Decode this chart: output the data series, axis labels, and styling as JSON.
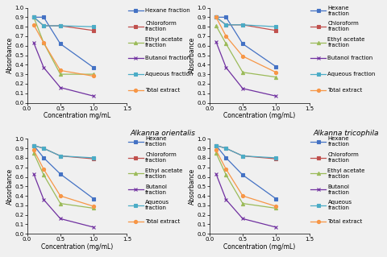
{
  "x": [
    0.1,
    0.25,
    0.5,
    1.0
  ],
  "panels": [
    {
      "title": "",
      "xlabel": "Concentration mg/mL",
      "legend_labels": [
        "Hexane fraction",
        "Chloroform\nfraction",
        "Ethyl acetate\nfraction",
        "Butanol fraction",
        "Aqueous fraction",
        "Total extract"
      ],
      "series": {
        "Hexane": [
          0.9,
          0.9,
          0.62,
          0.37
        ],
        "Chloroform": [
          0.9,
          0.81,
          0.81,
          0.76
        ],
        "EthylAcetate": [
          0.9,
          0.63,
          0.3,
          0.3
        ],
        "Butanol": [
          0.63,
          0.37,
          0.16,
          0.07
        ],
        "Aqueous": [
          0.9,
          0.81,
          0.81,
          0.8
        ],
        "TotalExtract": [
          0.82,
          0.63,
          0.34,
          0.28
        ]
      }
    },
    {
      "title": "",
      "xlabel": "Concentration (mg/mL)",
      "legend_labels": [
        "Hexane\nfraction",
        "Chloroform\nfraction",
        "Ethyl acetate\nfraction",
        "Butanol fraction",
        "Aqueous fraction",
        "Total extract"
      ],
      "series": {
        "Hexane": [
          0.9,
          0.9,
          0.62,
          0.38
        ],
        "Chloroform": [
          0.9,
          0.82,
          0.82,
          0.76
        ],
        "EthylAcetate": [
          0.81,
          0.62,
          0.32,
          0.27
        ],
        "Butanol": [
          0.64,
          0.37,
          0.15,
          0.07
        ],
        "Aqueous": [
          0.9,
          0.82,
          0.82,
          0.8
        ],
        "TotalExtract": [
          0.9,
          0.7,
          0.49,
          0.32
        ]
      }
    },
    {
      "title": "Alkanna orientalis",
      "xlabel": "Concentration (mg/mL)",
      "legend_labels": [
        "Hexane\nfraction",
        "Chloroform\nfraction",
        "Ethyl acetate\nfraction",
        "Butanol\nfraction",
        "Aqueous\nfraction",
        "Total extract"
      ],
      "series": {
        "Hexane": [
          0.93,
          0.8,
          0.63,
          0.37
        ],
        "Chloroform": [
          0.93,
          0.9,
          0.82,
          0.79
        ],
        "EthylAcetate": [
          0.85,
          0.62,
          0.32,
          0.27
        ],
        "Butanol": [
          0.63,
          0.36,
          0.16,
          0.07
        ],
        "Aqueous": [
          0.93,
          0.9,
          0.82,
          0.8
        ],
        "TotalExtract": [
          0.88,
          0.68,
          0.4,
          0.29
        ]
      }
    },
    {
      "title": "Alkanna tricophila",
      "xlabel": "Concentration (mg/mL)",
      "legend_labels": [
        "Hexane\nfraction",
        "Chloroform\nfraction",
        "Ethyl acetate\nfraction",
        "Butanol\nfraction",
        "Aqueous\nfraction",
        "Total extract"
      ],
      "series": {
        "Hexane": [
          0.93,
          0.8,
          0.62,
          0.37
        ],
        "Chloroform": [
          0.93,
          0.9,
          0.82,
          0.79
        ],
        "EthylAcetate": [
          0.85,
          0.62,
          0.32,
          0.27
        ],
        "Butanol": [
          0.63,
          0.36,
          0.16,
          0.07
        ],
        "Aqueous": [
          0.93,
          0.9,
          0.82,
          0.8
        ],
        "TotalExtract": [
          0.88,
          0.68,
          0.4,
          0.29
        ]
      }
    }
  ],
  "series_styles": {
    "Hexane": {
      "color": "#4472C4",
      "marker": "s"
    },
    "Chloroform": {
      "color": "#C0504D",
      "marker": "s"
    },
    "EthylAcetate": {
      "color": "#9BBB59",
      "marker": "^"
    },
    "Butanol": {
      "color": "#7030A0",
      "marker": "x"
    },
    "Aqueous": {
      "color": "#4BACC6",
      "marker": "s"
    },
    "TotalExtract": {
      "color": "#F79646",
      "marker": "o"
    }
  },
  "series_order": [
    "Hexane",
    "Chloroform",
    "EthylAcetate",
    "Butanol",
    "Aqueous",
    "TotalExtract"
  ],
  "ylim": [
    0,
    1.0
  ],
  "xlim": [
    0,
    1.5
  ],
  "yticks": [
    0,
    0.1,
    0.2,
    0.3,
    0.4,
    0.5,
    0.6,
    0.7,
    0.8,
    0.9,
    1.0
  ],
  "xticks": [
    0,
    0.5,
    1.0,
    1.5
  ],
  "ylabel": "Absorbance",
  "bg_color": "#f0f0f0",
  "fontsize_title": 6.5,
  "fontsize_label": 5.5,
  "fontsize_tick": 5,
  "fontsize_legend": 5.0,
  "linewidth": 0.9,
  "markersize": 3.0
}
